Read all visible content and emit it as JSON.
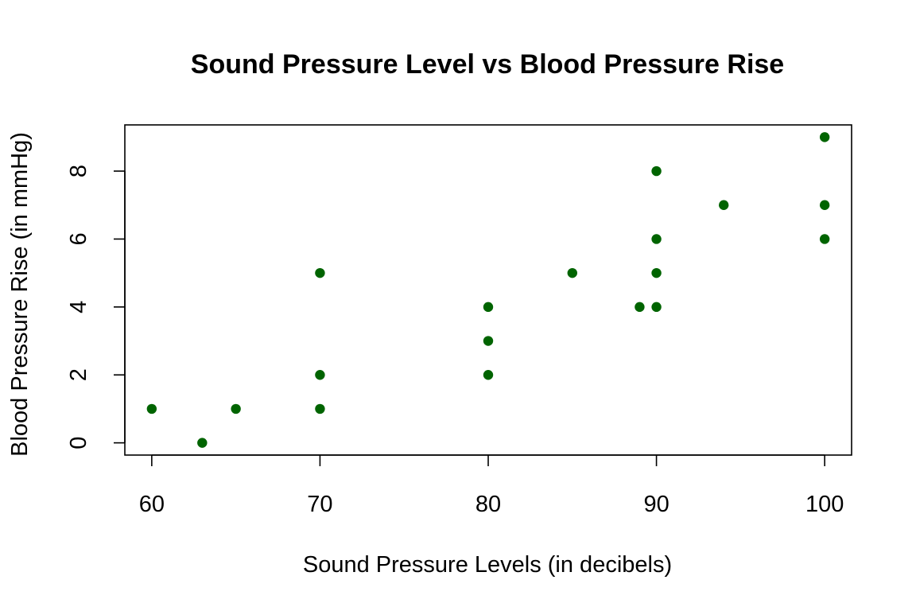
{
  "chart_data": {
    "type": "scatter",
    "title": "Sound Pressure Level vs Blood Pressure Rise",
    "xlabel": "Sound Pressure Levels (in decibels)",
    "ylabel": "Blood Pressure Rise (in mmHg)",
    "xlim": [
      58.4,
      101.6
    ],
    "ylim": [
      -0.36,
      9.36
    ],
    "xticks": [
      60,
      70,
      80,
      90,
      100
    ],
    "yticks": [
      0,
      2,
      4,
      6,
      8
    ],
    "grid": false,
    "legend": "none",
    "point_color": "#006400",
    "points": [
      {
        "x": 60,
        "y": 1
      },
      {
        "x": 63,
        "y": 0
      },
      {
        "x": 65,
        "y": 1
      },
      {
        "x": 70,
        "y": 1
      },
      {
        "x": 70,
        "y": 2
      },
      {
        "x": 70,
        "y": 5
      },
      {
        "x": 80,
        "y": 2
      },
      {
        "x": 80,
        "y": 3
      },
      {
        "x": 80,
        "y": 4
      },
      {
        "x": 85,
        "y": 5
      },
      {
        "x": 89,
        "y": 4
      },
      {
        "x": 90,
        "y": 4
      },
      {
        "x": 90,
        "y": 5
      },
      {
        "x": 90,
        "y": 6
      },
      {
        "x": 90,
        "y": 8
      },
      {
        "x": 94,
        "y": 7
      },
      {
        "x": 100,
        "y": 6
      },
      {
        "x": 100,
        "y": 7
      },
      {
        "x": 100,
        "y": 9
      }
    ]
  }
}
